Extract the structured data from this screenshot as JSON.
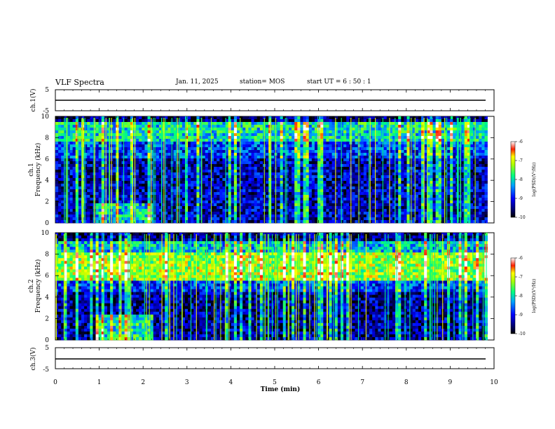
{
  "header": {
    "title": "VLF Spectra",
    "date": "Jan. 11, 2025",
    "station": "station= MOS",
    "start_ut": "start  UT =   6 : 50 : 1"
  },
  "chart_data": [
    {
      "panel": "ch1-waveform",
      "type": "line",
      "ylabel": "ch.1(V)",
      "ylim": [
        -5,
        5
      ],
      "yticks": [
        5,
        -5
      ],
      "xlim": [
        0,
        10
      ],
      "baseline_value": 0
    },
    {
      "panel": "ch1-spectrogram",
      "type": "heatmap",
      "ylabel_line1": "ch.1",
      "ylabel_line2": "Frequency (kHz)",
      "ylim": [
        0,
        10
      ],
      "yticks": [
        0,
        2,
        4,
        6,
        8,
        10
      ],
      "xlim": [
        0,
        10
      ],
      "data_end_min": 9.85,
      "colorbar": {
        "label": "log(PSD)(V²/Hz)",
        "range": [
          -10,
          -6
        ],
        "ticks": [
          "-6",
          "-7",
          "-8",
          "-9",
          "-10"
        ]
      },
      "description_colors": [
        "#000033",
        "#0000ff",
        "#00a0ff",
        "#00ff80",
        "#ffff00",
        "#ff0000"
      ]
    },
    {
      "panel": "ch2-spectrogram",
      "type": "heatmap",
      "ylabel_line1": "ch.2",
      "ylabel_line2": "Frequency (kHz)",
      "ylim": [
        0,
        10
      ],
      "yticks": [
        0,
        2,
        4,
        6,
        8,
        10
      ],
      "xlim": [
        0,
        10
      ],
      "data_end_min": 9.85,
      "colorbar": {
        "label": "log(PSD)(V²/Hz)",
        "range": [
          -10,
          -6
        ],
        "ticks": [
          "-6",
          "-7",
          "-8",
          "-9",
          "-10"
        ]
      }
    },
    {
      "panel": "ch3-waveform",
      "type": "line",
      "ylabel": "ch.3(V)",
      "ylim": [
        -5,
        5
      ],
      "yticks": [
        5,
        -5
      ],
      "xlim": [
        0,
        10
      ],
      "baseline_value": 0
    }
  ],
  "xaxis": {
    "label": "Time (min)",
    "ticks": [
      "0",
      "1",
      "2",
      "3",
      "4",
      "5",
      "6",
      "7",
      "8",
      "9",
      "10"
    ]
  }
}
